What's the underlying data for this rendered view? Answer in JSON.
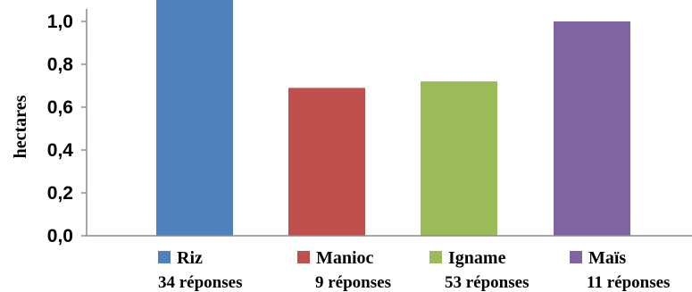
{
  "chart_data": {
    "type": "bar",
    "title": "",
    "xlabel": "",
    "ylabel": "hectares",
    "ylim": [
      0,
      1.1
    ],
    "y_ticks": [
      "0,0",
      "0,2",
      "0,4",
      "0,6",
      "0,8",
      "1,0"
    ],
    "grid": false,
    "categories": [
      "Riz",
      "Manioc",
      "Igname",
      "Maïs"
    ],
    "values": [
      1.11,
      0.69,
      0.72,
      1.0
    ],
    "responses": [
      "34 réponses",
      "9 réponses",
      "53 réponses",
      "11 réponses"
    ],
    "colors": [
      "#4F81BD",
      "#C0504D",
      "#9BBB59",
      "#8064A2"
    ]
  }
}
